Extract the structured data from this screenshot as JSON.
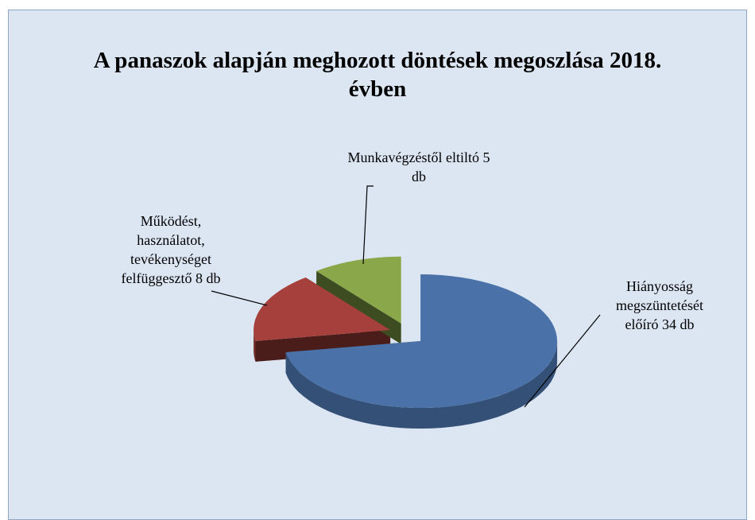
{
  "chart_data": {
    "type": "pie",
    "title": "A panaszok alapján meghozott döntések megoszlása 2018. évben",
    "categories": [
      "Hiányosság megszüntetését előíró",
      "Működést, használatot, tevékenységet felfüggesztő",
      "Munkavégzéstől eltiltó"
    ],
    "values": [
      34,
      8,
      5
    ],
    "value_labels": [
      "34 db",
      "8 db",
      "5 db"
    ],
    "colors": [
      "#4a72a8",
      "#a5403c",
      "#8aa84a"
    ]
  }
}
